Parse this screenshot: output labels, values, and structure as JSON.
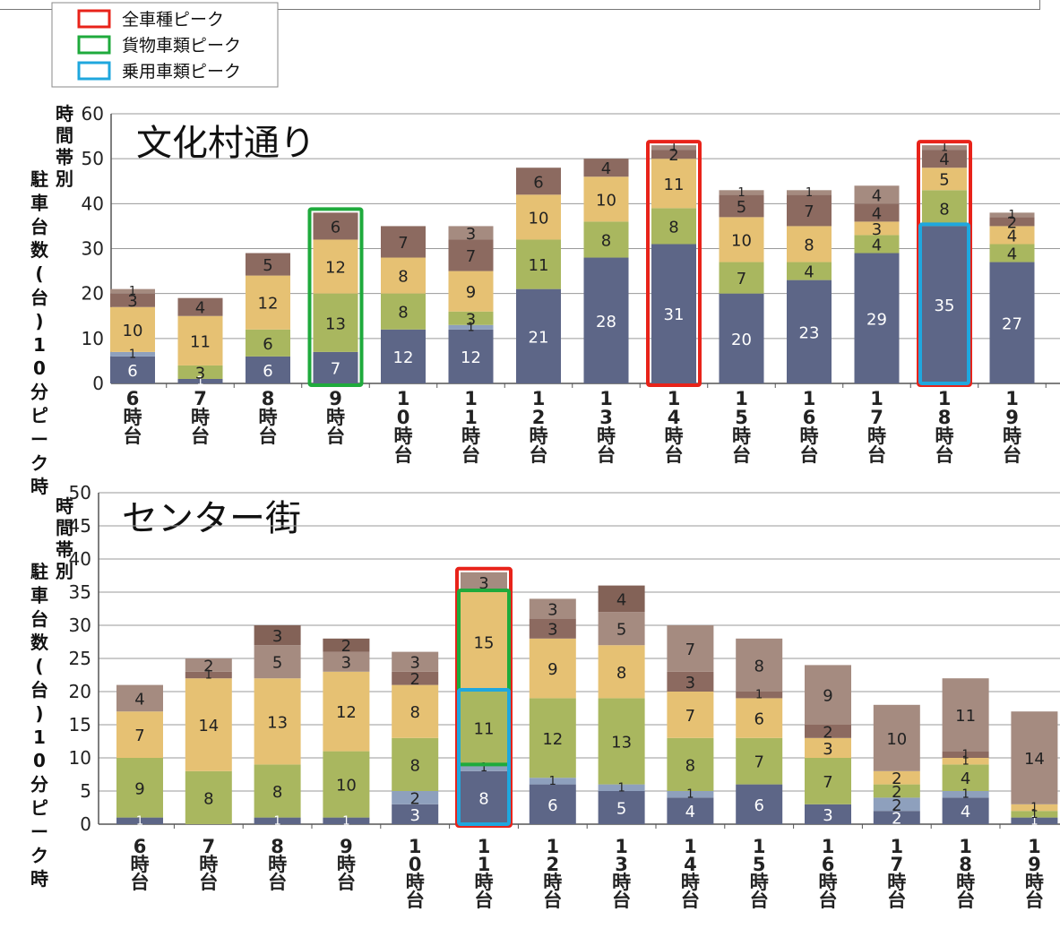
{
  "legend": {
    "items": [
      {
        "label": "全車種ピーク",
        "color": "#e8231a"
      },
      {
        "label": "貨物車類ピーク",
        "color": "#1faa3c"
      },
      {
        "label": "乗用車類ピーク",
        "color": "#1fa7de"
      }
    ]
  },
  "colors": {
    "seg1": "#5d6687",
    "seg2": "#8ea0bd",
    "seg3": "#a9b75f",
    "seg4": "#e6c173",
    "seg5": "#8c6a60"
  },
  "chart_data": [
    {
      "type": "bar",
      "stacked": true,
      "title": "文化村通り",
      "ylabel": "時間帯別駐車台数(台)10分ピーク時",
      "ylim": [
        0,
        60
      ],
      "yticks": [
        0,
        10,
        20,
        30,
        40,
        50,
        60
      ],
      "categories": [
        "6時台",
        "7時台",
        "8時台",
        "9時台",
        "10時台",
        "11時台",
        "12時台",
        "13時台",
        "14時台",
        "15時台",
        "16時台",
        "17時台",
        "18時台",
        "19時台"
      ],
      "category_labels": [
        "6\n時\n台",
        "7\n時\n台",
        "8\n時\n台",
        "9\n時\n台",
        "1\n0\n時\n台",
        "1\n1\n時\n台",
        "1\n2\n時\n台",
        "1\n3\n時\n台",
        "1\n4\n時\n台",
        "1\n5\n時\n台",
        "1\n6\n時\n台",
        "1\n7\n時\n台",
        "1\n8\n時\n台",
        "1\n9\n時\n台"
      ],
      "series": [
        {
          "values": [
            6,
            1,
            6,
            7,
            12,
            12,
            21,
            28,
            31,
            20,
            23,
            29,
            35,
            27
          ],
          "color": "#5d6687"
        },
        {
          "values": [
            1,
            0,
            0,
            0,
            0,
            1,
            0,
            0,
            0,
            0,
            0,
            0,
            0,
            0
          ],
          "color": "#8ea0bd"
        },
        {
          "values": [
            0,
            3,
            6,
            13,
            8,
            3,
            11,
            8,
            8,
            7,
            4,
            4,
            8,
            4
          ],
          "color": "#a9b75f"
        },
        {
          "values": [
            10,
            11,
            12,
            12,
            8,
            9,
            10,
            10,
            11,
            10,
            8,
            3,
            5,
            4
          ],
          "color": "#e6c173"
        },
        {
          "values": [
            3,
            4,
            5,
            6,
            7,
            7,
            6,
            4,
            2,
            5,
            7,
            4,
            4,
            2
          ],
          "color": "#8c6a60"
        },
        {
          "values": [
            1,
            0,
            0,
            0,
            0,
            3,
            0,
            0,
            1,
            1,
            1,
            4,
            1,
            1
          ],
          "color": "#a58b80"
        }
      ],
      "segment_labels": [
        [
          "6",
          "1",
          "",
          "10",
          "3",
          "1"
        ],
        [
          "1",
          "",
          "3",
          "11",
          "4",
          ""
        ],
        [
          "6",
          "",
          "6",
          "12",
          "5",
          ""
        ],
        [
          "7",
          "",
          "13",
          "12",
          "6",
          ""
        ],
        [
          "12",
          "",
          "8",
          "8",
          "7",
          ""
        ],
        [
          "12",
          "1",
          "3",
          "9",
          "7",
          "3"
        ],
        [
          "21",
          "",
          "11",
          "10",
          "6",
          ""
        ],
        [
          "28",
          "",
          "8",
          "10",
          "4",
          ""
        ],
        [
          "31",
          "",
          "8",
          "11",
          "2",
          "1"
        ],
        [
          "20",
          "",
          "7",
          "10",
          "5",
          "1"
        ],
        [
          "23",
          "",
          "4",
          "8",
          "7",
          "1"
        ],
        [
          "29",
          "",
          "4",
          "3",
          "4",
          "4"
        ],
        [
          "35",
          "",
          "8",
          "5",
          "4",
          "1"
        ],
        [
          "27",
          "",
          "4",
          "4",
          "2",
          "1"
        ]
      ],
      "highlights": [
        {
          "category_index": 3,
          "type": "貨物車類ピーク",
          "color": "#1faa3c"
        },
        {
          "category_index": 8,
          "type": "全車種ピーク",
          "color": "#e8231a"
        },
        {
          "category_index": 12,
          "type": "全車種ピーク",
          "color": "#e8231a"
        },
        {
          "category_index": 12,
          "type": "乗用車類ピーク",
          "color": "#1fa7de",
          "segment_from": 0,
          "segment_to": 1
        }
      ],
      "grid": true,
      "legend": "top-left"
    },
    {
      "type": "bar",
      "stacked": true,
      "title": "センター街",
      "ylabel": "時間帯別駐車台数(台)10分ピーク時",
      "ylim": [
        0,
        50
      ],
      "yticks": [
        0,
        5,
        10,
        15,
        20,
        25,
        30,
        35,
        40,
        45,
        50
      ],
      "categories": [
        "6時台",
        "7時台",
        "8時台",
        "9時台",
        "10時台",
        "11時台",
        "12時台",
        "13時台",
        "14時台",
        "15時台",
        "16時台",
        "17時台",
        "18時台",
        "19時台"
      ],
      "category_labels": [
        "6\n時\n台",
        "7\n時\n台",
        "8\n時\n台",
        "9\n時\n台",
        "1\n0\n時\n台",
        "1\n1\n時\n台",
        "1\n2\n時\n台",
        "1\n3\n時\n台",
        "1\n4\n時\n台",
        "1\n5\n時\n台",
        "1\n6\n時\n台",
        "1\n7\n時\n台",
        "1\n8\n時\n台",
        "1\n9\n時\n台"
      ],
      "series": [
        {
          "values": [
            1,
            0,
            1,
            1,
            3,
            8,
            6,
            5,
            4,
            6,
            3,
            2,
            4,
            1
          ],
          "color": "#5d6687"
        },
        {
          "values": [
            0,
            0,
            0,
            0,
            2,
            1,
            1,
            1,
            1,
            0,
            0,
            2,
            1,
            0
          ],
          "color": "#8ea0bd"
        },
        {
          "values": [
            9,
            8,
            8,
            10,
            8,
            11,
            12,
            13,
            8,
            7,
            7,
            2,
            4,
            1
          ],
          "color": "#a9b75f"
        },
        {
          "values": [
            7,
            14,
            13,
            12,
            8,
            15,
            9,
            8,
            7,
            6,
            3,
            2,
            1,
            1
          ],
          "color": "#e6c173"
        },
        {
          "values": [
            0,
            1,
            0,
            0,
            2,
            0,
            3,
            0,
            3,
            1,
            2,
            0,
            1,
            0
          ],
          "color": "#8c6a60"
        },
        {
          "values": [
            4,
            2,
            5,
            3,
            3,
            3,
            3,
            5,
            7,
            8,
            9,
            10,
            11,
            14
          ],
          "color": "#a58b80"
        },
        {
          "values": [
            0,
            0,
            3,
            2,
            0,
            0,
            0,
            4,
            0,
            0,
            0,
            0,
            0,
            0
          ],
          "color": "#836257"
        }
      ],
      "segment_labels": [
        [
          "1",
          "",
          "9",
          "7",
          "",
          "4",
          ""
        ],
        [
          "",
          "",
          "8",
          "14",
          "1",
          "2",
          ""
        ],
        [
          "1",
          "",
          "8",
          "13",
          "",
          "5",
          "3"
        ],
        [
          "1",
          "",
          "10",
          "12",
          "",
          "3",
          "2"
        ],
        [
          "3",
          "2",
          "8",
          "8",
          "2",
          "3",
          ""
        ],
        [
          "8",
          "1",
          "11",
          "15",
          "",
          "3",
          ""
        ],
        [
          "6",
          "1",
          "12",
          "9",
          "3",
          "3",
          ""
        ],
        [
          "5",
          "1",
          "13",
          "8",
          "",
          "5",
          "4"
        ],
        [
          "4",
          "1",
          "8",
          "7",
          "3",
          "7",
          ""
        ],
        [
          "6",
          "",
          "7",
          "6",
          "1",
          "8",
          ""
        ],
        [
          "3",
          "",
          "7",
          "3",
          "2",
          "9",
          ""
        ],
        [
          "2",
          "2",
          "2",
          "2",
          "",
          "10",
          ""
        ],
        [
          "4",
          "1",
          "4",
          "1",
          "1",
          "11",
          ""
        ],
        [
          "1",
          "",
          "1",
          "1",
          "",
          "14",
          ""
        ]
      ],
      "highlights": [
        {
          "category_index": 5,
          "type": "全車種ピーク",
          "color": "#e8231a"
        },
        {
          "category_index": 5,
          "type": "貨物車類ピーク",
          "color": "#1faa3c",
          "segment_from": 2,
          "segment_to": 4
        },
        {
          "category_index": 5,
          "type": "乗用車類ピーク",
          "color": "#1fa7de",
          "segment_from": 0,
          "segment_to": 2
        }
      ],
      "grid": true,
      "legend": "none"
    }
  ]
}
